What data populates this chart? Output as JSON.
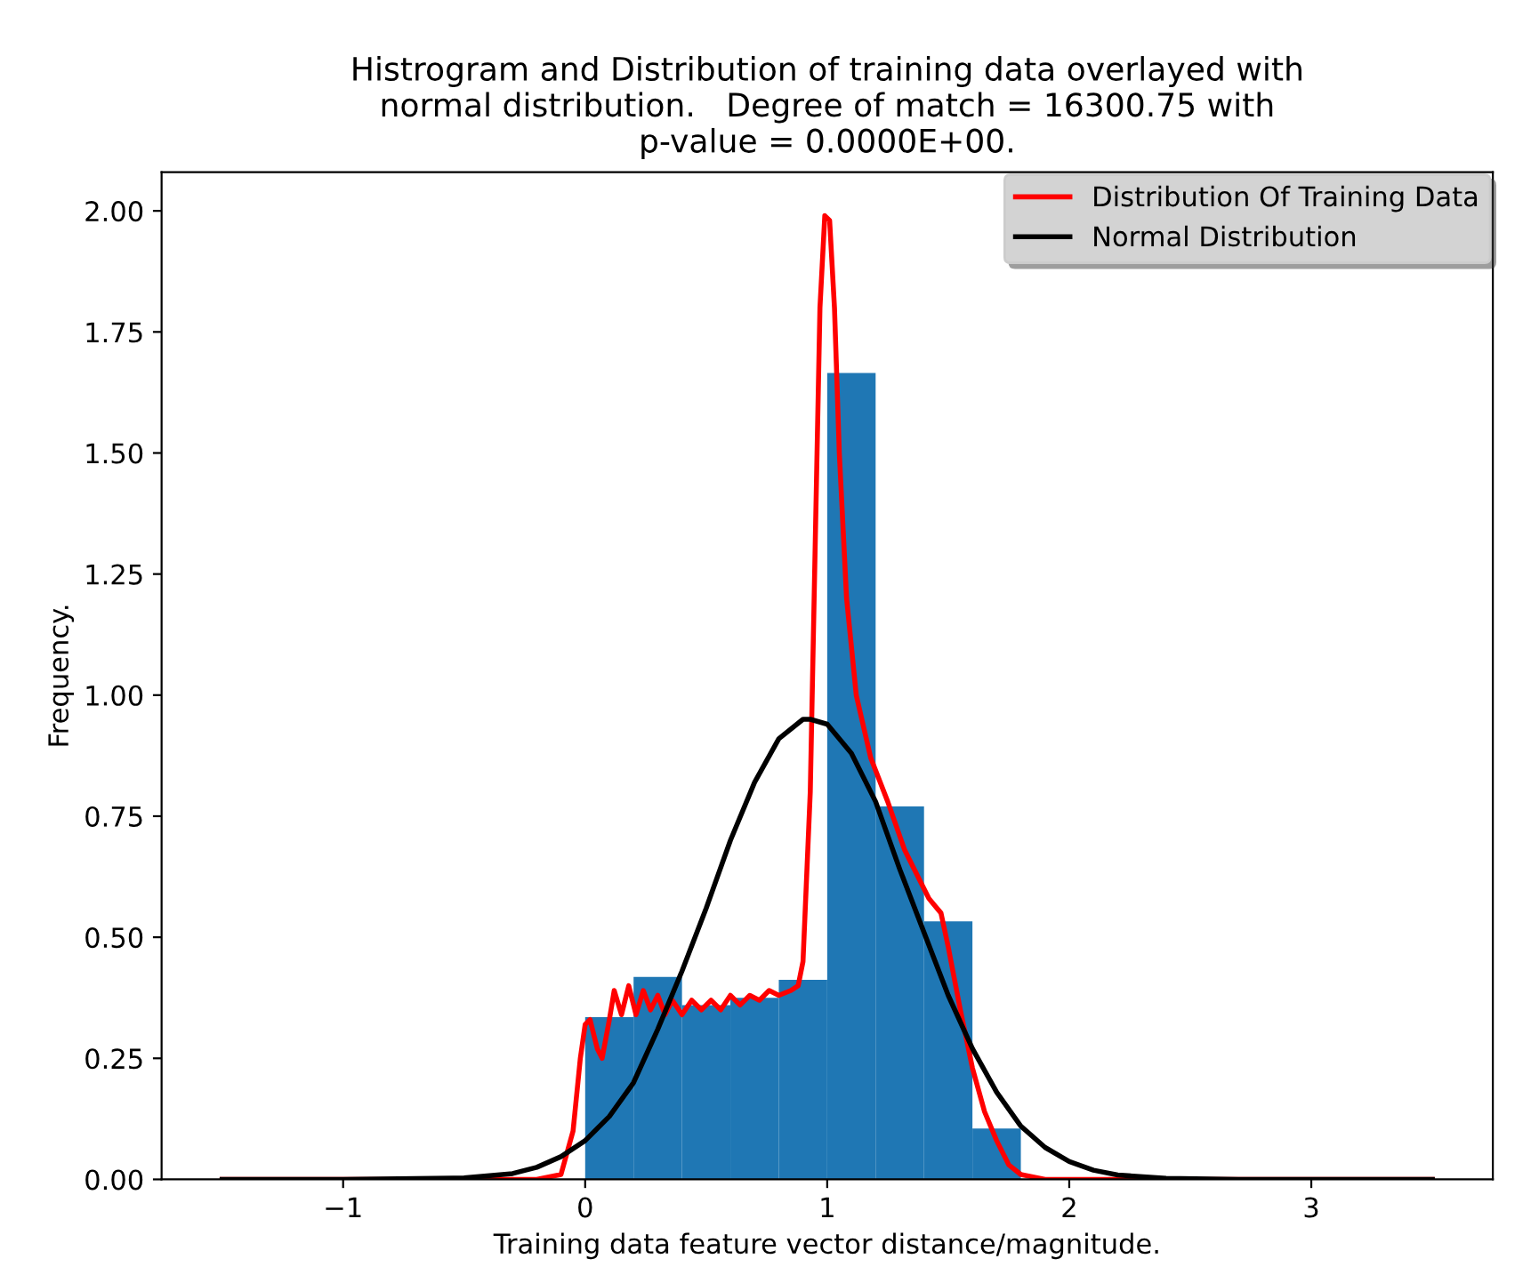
{
  "chart_data": {
    "type": "histogram",
    "title": "Histrogram and Distribution of training data overlayed with\nnormal distribution.   Degree of match = 16300.75 with\np-value = 0.0000E+00.",
    "xlabel": "Training data feature vector distance/magnitude.",
    "ylabel": "Frequency.",
    "bins": [
      0,
      0.2,
      0.4,
      0.6,
      0.8,
      1.0,
      1.2,
      1.4,
      1.6,
      1.8
    ],
    "values": [
      0.335,
      0.418,
      0.36,
      0.375,
      0.412,
      1.665,
      0.77,
      0.533,
      0.105
    ],
    "color": "#1f77b4",
    "series": [
      {
        "type": "line",
        "name": "Distribution Of Training Data",
        "color": "#ff0000",
        "x": [
          -1.5,
          -0.2,
          -0.1,
          -0.05,
          -0.02,
          0.0,
          0.02,
          0.05,
          0.07,
          0.1,
          0.12,
          0.15,
          0.18,
          0.21,
          0.24,
          0.27,
          0.3,
          0.33,
          0.36,
          0.4,
          0.44,
          0.48,
          0.52,
          0.56,
          0.6,
          0.64,
          0.68,
          0.72,
          0.76,
          0.8,
          0.85,
          0.88,
          0.9,
          0.93,
          0.95,
          0.97,
          0.99,
          1.01,
          1.03,
          1.05,
          1.08,
          1.12,
          1.18,
          1.25,
          1.32,
          1.38,
          1.42,
          1.47,
          1.5,
          1.55,
          1.6,
          1.65,
          1.7,
          1.75,
          1.8,
          1.9,
          3.5
        ],
        "values": [
          0,
          0,
          0.01,
          0.1,
          0.25,
          0.32,
          0.33,
          0.27,
          0.25,
          0.33,
          0.39,
          0.34,
          0.4,
          0.34,
          0.39,
          0.35,
          0.38,
          0.34,
          0.37,
          0.34,
          0.37,
          0.35,
          0.37,
          0.35,
          0.38,
          0.36,
          0.38,
          0.37,
          0.39,
          0.38,
          0.39,
          0.4,
          0.45,
          0.8,
          1.3,
          1.8,
          1.99,
          1.98,
          1.8,
          1.5,
          1.2,
          1.0,
          0.87,
          0.78,
          0.68,
          0.62,
          0.58,
          0.55,
          0.48,
          0.35,
          0.23,
          0.14,
          0.08,
          0.03,
          0.01,
          0,
          0
        ]
      },
      {
        "type": "line",
        "name": "Normal Distribution",
        "color": "#000000",
        "x": [
          -1.5,
          -1,
          -0.5,
          -0.3,
          -0.2,
          -0.1,
          0,
          0.1,
          0.2,
          0.3,
          0.4,
          0.5,
          0.6,
          0.7,
          0.8,
          0.9,
          0.93,
          1.0,
          1.1,
          1.2,
          1.3,
          1.4,
          1.5,
          1.6,
          1.7,
          1.8,
          1.9,
          2.0,
          2.1,
          2.2,
          2.4,
          2.7,
          3,
          3.5
        ],
        "values": [
          0,
          0,
          0.003,
          0.012,
          0.025,
          0.047,
          0.08,
          0.13,
          0.2,
          0.31,
          0.43,
          0.56,
          0.7,
          0.82,
          0.91,
          0.95,
          0.95,
          0.94,
          0.88,
          0.78,
          0.64,
          0.51,
          0.38,
          0.27,
          0.18,
          0.11,
          0.066,
          0.037,
          0.019,
          0.009,
          0.002,
          0.0,
          0,
          0
        ]
      }
    ],
    "xlim": [
      -1.75,
      3.75
    ],
    "xticks": [
      {
        "value": -1,
        "label": "−1"
      },
      0,
      1,
      2,
      3
    ],
    "ylim": [
      0,
      2.08
    ],
    "yticks": [
      {
        "value": 0,
        "label": "0.00"
      },
      {
        "value": 0.25,
        "label": "0.25"
      },
      {
        "value": 0.5,
        "label": "0.50"
      },
      {
        "value": 0.75,
        "label": "0.75"
      },
      {
        "value": 1.0,
        "label": "1.00"
      },
      {
        "value": 1.25,
        "label": "1.25"
      },
      {
        "value": 1.5,
        "label": "1.50"
      },
      {
        "value": 1.75,
        "label": "1.75"
      },
      {
        "value": 2.0,
        "label": "2.00"
      }
    ],
    "grid": false,
    "legend": "top right"
  }
}
